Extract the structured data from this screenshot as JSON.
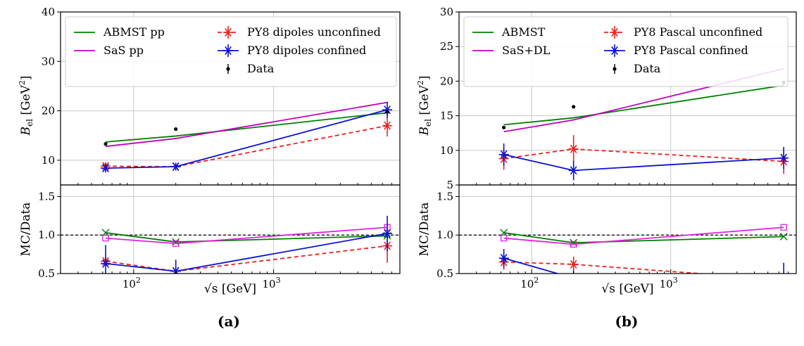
{
  "chart_data": [
    {
      "panel_label": "(a)",
      "type": "line",
      "x": [
        63,
        200,
        6500
      ],
      "xlabel": "√s [GeV]",
      "xscale": "log",
      "xlim": [
        30,
        8000
      ],
      "xticks": [
        {
          "value": 100,
          "base": "10",
          "exp": "2"
        },
        {
          "value": 1000,
          "base": "10",
          "exp": "3"
        }
      ],
      "grid": true,
      "top": {
        "ylabel_main": "B",
        "ylabel_sub": "el",
        "ylabel_unit": "[GeV",
        "ylabel_unit_exp": "2",
        "ylabel_unit_close": "]",
        "ylim": [
          5,
          40
        ],
        "yticks": [
          "10",
          "20",
          "30",
          "40"
        ],
        "legend_placement": "upper-left",
        "series": [
          {
            "name": "ABMST pp",
            "color": "#008000",
            "style": "solid",
            "values": [
              13.7,
              14.9,
              19.6
            ]
          },
          {
            "name": "SaS pp",
            "color": "#c000c0",
            "style": "solid",
            "values": [
              12.8,
              14.4,
              21.7
            ]
          },
          {
            "name": "PY8 dipoles unconfined",
            "color": "#e8231f",
            "style": "dashed",
            "marker": "star",
            "values": [
              8.8,
              8.7,
              17.0
            ],
            "errors": [
              0.8,
              0.7,
              2.2
            ]
          },
          {
            "name": "PY8 dipoles confined",
            "color": "#0a12d6",
            "style": "solid",
            "marker": "star",
            "values": [
              8.4,
              8.7,
              20.2
            ],
            "errors": [
              0.9,
              0.8,
              1.6
            ]
          },
          {
            "name": "Data",
            "color": "#000000",
            "style": "points",
            "values": [
              13.3,
              16.3,
              19.8
            ]
          }
        ]
      },
      "bottom": {
        "ylabel": "MC/Data",
        "ylim": [
          0.5,
          1.65
        ],
        "yticks": [
          "0.5",
          "1.0",
          "1.5"
        ],
        "reference_line": 1.0,
        "series": [
          {
            "name": "ABMST pp",
            "color": "#008000",
            "style": "solid",
            "marker": "x",
            "values": [
              1.03,
              0.91,
              0.99
            ]
          },
          {
            "name": "SaS pp",
            "color": "#e020e0",
            "style": "solid",
            "marker": "square",
            "values": [
              0.96,
              0.89,
              1.1
            ]
          },
          {
            "name": "PY8 dipoles unconfined",
            "color": "#e8231f",
            "style": "dashed",
            "marker": "star",
            "values": [
              0.66,
              0.53,
              0.86
            ],
            "errors": [
              0.06,
              0.05,
              0.22
            ]
          },
          {
            "name": "PY8 dipoles confined",
            "color": "#0a12d6",
            "style": "solid",
            "marker": "star",
            "values": [
              0.63,
              0.53,
              1.02
            ],
            "errors": [
              0.24,
              0.15,
              0.23
            ]
          }
        ]
      }
    },
    {
      "panel_label": "(b)",
      "type": "line",
      "x": [
        63,
        200,
        6500
      ],
      "xlabel": "√s [GeV]",
      "xscale": "log",
      "xlim": [
        30,
        8000
      ],
      "xticks": [
        {
          "value": 100,
          "base": "10",
          "exp": "2"
        },
        {
          "value": 1000,
          "base": "10",
          "exp": "3"
        }
      ],
      "grid": true,
      "top": {
        "ylabel_main": "B",
        "ylabel_sub": "el",
        "ylabel_unit": "[GeV",
        "ylabel_unit_exp": "2",
        "ylabel_unit_close": "]",
        "ylim": [
          5,
          30
        ],
        "yticks": [
          "5",
          "10",
          "15",
          "20",
          "25",
          "30"
        ],
        "legend_placement": "upper-left",
        "series": [
          {
            "name": "ABMST",
            "color": "#008000",
            "style": "solid",
            "values": [
              13.7,
              14.7,
              19.4
            ]
          },
          {
            "name": "SaS+DL",
            "color": "#c000c0",
            "style": "solid",
            "values": [
              12.7,
              14.4,
              21.8
            ]
          },
          {
            "name": "PY8 Pascal unconfined",
            "color": "#e8231f",
            "style": "dashed",
            "marker": "star",
            "values": [
              8.8,
              10.2,
              8.4
            ],
            "errors": [
              1.6,
              2.0,
              1.8
            ]
          },
          {
            "name": "PY8 Pascal confined",
            "color": "#0a12d6",
            "style": "solid",
            "marker": "star",
            "values": [
              9.4,
              7.1,
              8.9
            ],
            "errors": [
              1.6,
              1.4,
              1.6
            ]
          },
          {
            "name": "Data",
            "color": "#000000",
            "style": "points",
            "values": [
              13.3,
              16.3,
              19.8
            ]
          }
        ]
      },
      "bottom": {
        "ylabel": "MC/Data",
        "ylim": [
          0.5,
          1.65
        ],
        "yticks": [
          "0.5",
          "1.0",
          "1.5"
        ],
        "reference_line": 1.0,
        "series": [
          {
            "name": "ABMST",
            "color": "#008000",
            "style": "solid",
            "marker": "x",
            "values": [
              1.03,
              0.9,
              0.98
            ]
          },
          {
            "name": "SaS+DL",
            "color": "#e020e0",
            "style": "solid",
            "marker": "square",
            "values": [
              0.96,
              0.88,
              1.1
            ]
          },
          {
            "name": "PY8 Pascal unconfined",
            "color": "#e8231f",
            "style": "dashed",
            "marker": "star",
            "values": [
              0.65,
              0.62,
              0.42
            ],
            "errors": [
              0.1,
              0.1,
              0.1
            ]
          },
          {
            "name": "PY8 Pascal confined",
            "color": "#0a12d6",
            "style": "solid",
            "marker": "star",
            "values": [
              0.7,
              0.44,
              0.45
            ],
            "errors": [
              0.12,
              0.1,
              0.19
            ]
          }
        ]
      }
    }
  ]
}
